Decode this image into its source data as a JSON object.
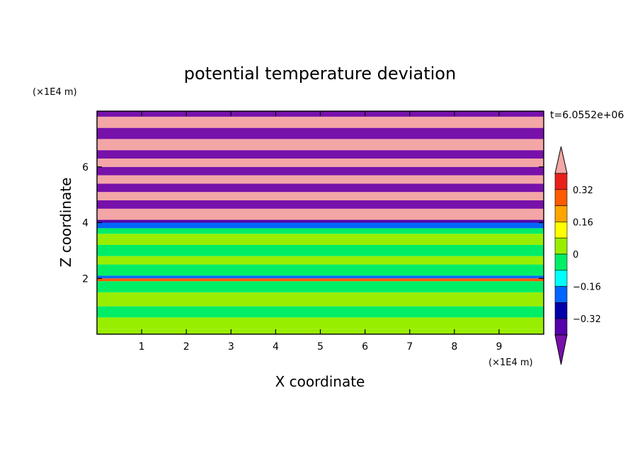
{
  "chart_data": {
    "type": "heatmap",
    "title": "potential temperature deviation",
    "xlabel": "X coordinate",
    "ylabel": "Z coordinate",
    "x_unit": "(×1E4 m)",
    "y_unit": "(×1E4 m)",
    "time_label": "t=6.0552e+06",
    "xlim": [
      0,
      10
    ],
    "ylim": [
      0,
      8
    ],
    "xticks": [
      1,
      2,
      3,
      4,
      5,
      6,
      7,
      8,
      9
    ],
    "yticks": [
      2,
      4,
      6
    ],
    "colorbar": {
      "levels": [
        -0.4,
        -0.32,
        -0.24,
        -0.16,
        -0.08,
        0,
        0.08,
        0.16,
        0.24,
        0.32,
        0.4
      ],
      "tick_labels": [
        "0.32",
        "0.16",
        "0",
        "−0.16",
        "−0.32"
      ],
      "tick_values": [
        0.32,
        0.16,
        0,
        -0.16,
        -0.32
      ],
      "colors_high_to_low": [
        "#f4a6a6",
        "#e8201a",
        "#ff5a00",
        "#ffa500",
        "#ffff00",
        "#99ee00",
        "#00ee66",
        "#00ffff",
        "#0066ff",
        "#0000aa",
        "#5500aa",
        "#7711aa"
      ]
    },
    "bands": [
      {
        "z": [
          0.0,
          0.2
        ],
        "value": 0.03
      },
      {
        "z": [
          0.2,
          0.6
        ],
        "value": 0.05
      },
      {
        "z": [
          0.6,
          1.0
        ],
        "value": -0.03
      },
      {
        "z": [
          1.0,
          1.5
        ],
        "value": 0.04
      },
      {
        "z": [
          1.5,
          1.9
        ],
        "value": -0.02
      },
      {
        "z": [
          1.9,
          2.0
        ],
        "value": 0.27
      },
      {
        "z": [
          2.0,
          2.1
        ],
        "value": -0.18
      },
      {
        "z": [
          2.1,
          2.5
        ],
        "value": -0.03
      },
      {
        "z": [
          2.5,
          2.8
        ],
        "value": 0.02
      },
      {
        "z": [
          2.8,
          3.2
        ],
        "value": -0.04
      },
      {
        "z": [
          3.2,
          3.6
        ],
        "value": 0.02
      },
      {
        "z": [
          3.6,
          3.8
        ],
        "value": -0.05
      },
      {
        "z": [
          3.8,
          4.0
        ],
        "value": -0.21
      },
      {
        "z": [
          4.0,
          4.1
        ],
        "value": -0.36
      },
      {
        "z": [
          4.1,
          4.5
        ],
        "value": 0.45
      },
      {
        "z": [
          4.5,
          4.8
        ],
        "value": -0.45
      },
      {
        "z": [
          4.8,
          5.1
        ],
        "value": 0.45
      },
      {
        "z": [
          5.1,
          5.4
        ],
        "value": -0.45
      },
      {
        "z": [
          5.4,
          5.7
        ],
        "value": 0.45
      },
      {
        "z": [
          5.7,
          6.0
        ],
        "value": -0.45
      },
      {
        "z": [
          6.0,
          6.3
        ],
        "value": 0.45
      },
      {
        "z": [
          6.3,
          6.6
        ],
        "value": -0.45
      },
      {
        "z": [
          6.6,
          7.0
        ],
        "value": 0.45
      },
      {
        "z": [
          7.0,
          7.4
        ],
        "value": -0.45
      },
      {
        "z": [
          7.4,
          7.8
        ],
        "value": 0.45
      },
      {
        "z": [
          7.8,
          8.0
        ],
        "value": -0.45
      }
    ]
  }
}
